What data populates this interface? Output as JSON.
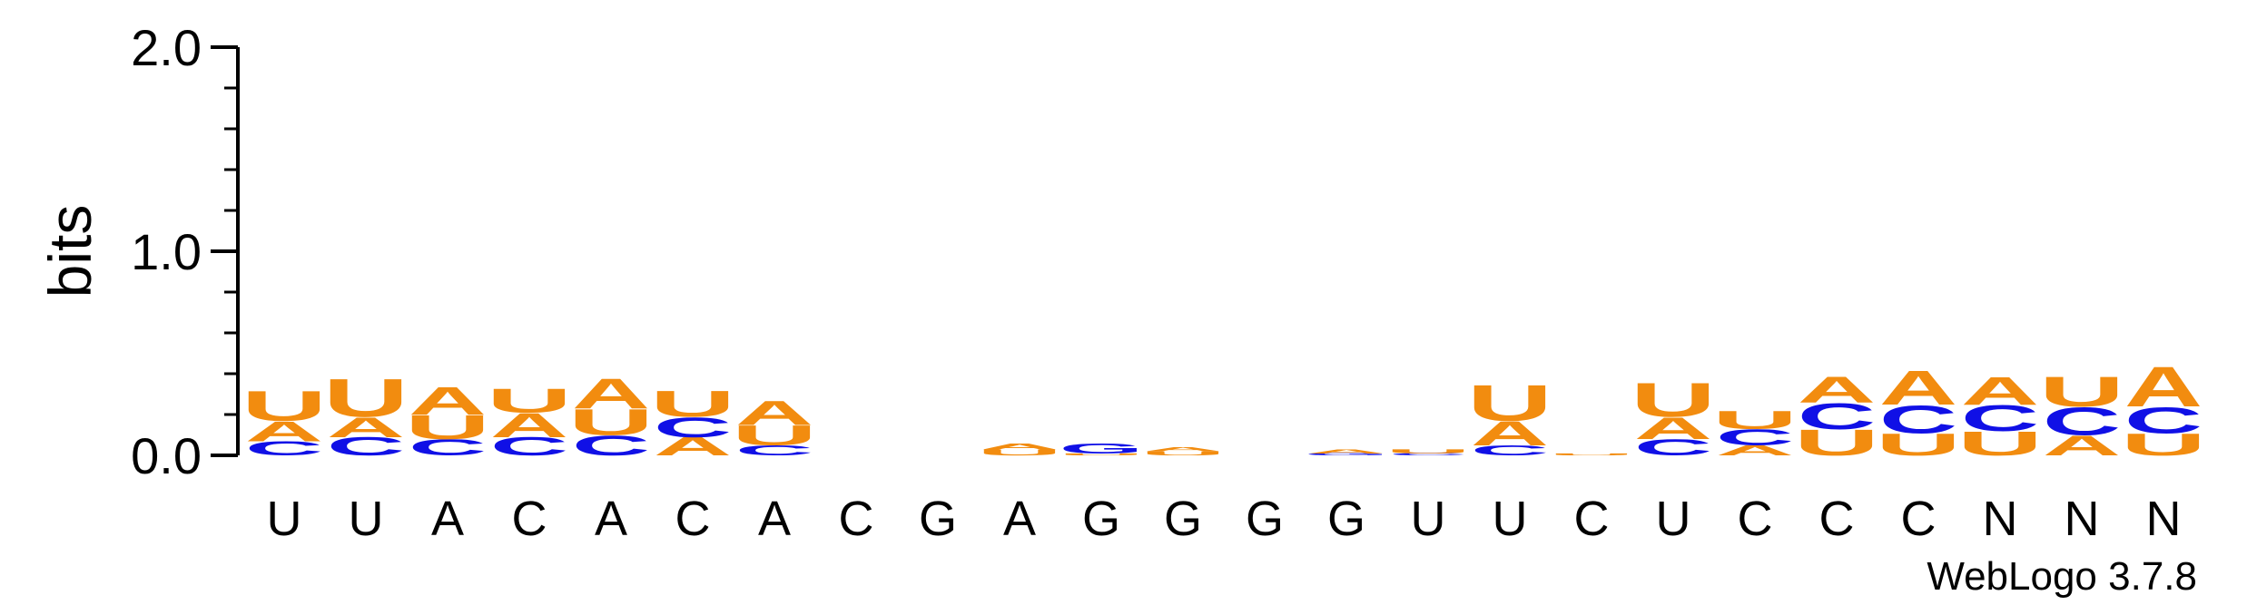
{
  "chart_data": {
    "type": "sequence-logo",
    "ylabel": "bits",
    "ylim": [
      0,
      2.0
    ],
    "yticks": [
      {
        "value": 0.0,
        "label": "0.0"
      },
      {
        "value": 1.0,
        "label": "1.0"
      },
      {
        "value": 2.0,
        "label": "2.0"
      }
    ],
    "credit": "WebLogo 3.7.8",
    "colors": {
      "A": "#f28c0f",
      "U": "#f28c0f",
      "C": "#1010e6",
      "G": "#1010e6",
      "N": "#000000"
    },
    "positions": [
      {
        "label": "U",
        "stack": [
          {
            "letter": "C",
            "height": 0.07
          },
          {
            "letter": "A",
            "height": 0.1
          },
          {
            "letter": "U",
            "height": 0.15
          }
        ]
      },
      {
        "label": "U",
        "stack": [
          {
            "letter": "C",
            "height": 0.09
          },
          {
            "letter": "A",
            "height": 0.1
          },
          {
            "letter": "U",
            "height": 0.19
          }
        ]
      },
      {
        "label": "A",
        "stack": [
          {
            "letter": "C",
            "height": 0.08
          },
          {
            "letter": "U",
            "height": 0.12
          },
          {
            "letter": "A",
            "height": 0.14
          }
        ]
      },
      {
        "label": "C",
        "stack": [
          {
            "letter": "C",
            "height": 0.09
          },
          {
            "letter": "A",
            "height": 0.12
          },
          {
            "letter": "U",
            "height": 0.12
          }
        ]
      },
      {
        "label": "A",
        "stack": [
          {
            "letter": "C",
            "height": 0.1
          },
          {
            "letter": "U",
            "height": 0.13
          },
          {
            "letter": "A",
            "height": 0.15
          }
        ]
      },
      {
        "label": "C",
        "stack": [
          {
            "letter": "A",
            "height": 0.09
          },
          {
            "letter": "C",
            "height": 0.1
          },
          {
            "letter": "U",
            "height": 0.13
          }
        ]
      },
      {
        "label": "A",
        "stack": [
          {
            "letter": "C",
            "height": 0.05
          },
          {
            "letter": "U",
            "height": 0.1
          },
          {
            "letter": "A",
            "height": 0.12
          }
        ]
      },
      {
        "label": "C",
        "stack": []
      },
      {
        "label": "G",
        "stack": []
      },
      {
        "label": "A",
        "stack": [
          {
            "letter": "U",
            "height": 0.03
          },
          {
            "letter": "A",
            "height": 0.03
          }
        ]
      },
      {
        "label": "G",
        "stack": [
          {
            "letter": "U",
            "height": 0.01
          },
          {
            "letter": "G",
            "height": 0.05
          }
        ]
      },
      {
        "label": "G",
        "stack": [
          {
            "letter": "U",
            "height": 0.02
          },
          {
            "letter": "A",
            "height": 0.02
          }
        ]
      },
      {
        "label": "G",
        "stack": []
      },
      {
        "label": "G",
        "stack": [
          {
            "letter": "G",
            "height": 0.01
          },
          {
            "letter": "A",
            "height": 0.02
          }
        ]
      },
      {
        "label": "U",
        "stack": [
          {
            "letter": "C",
            "height": 0.01
          },
          {
            "letter": "U",
            "height": 0.02
          }
        ]
      },
      {
        "label": "U",
        "stack": [
          {
            "letter": "C",
            "height": 0.05
          },
          {
            "letter": "A",
            "height": 0.12
          },
          {
            "letter": "U",
            "height": 0.18
          }
        ]
      },
      {
        "label": "C",
        "stack": [
          {
            "letter": "U",
            "height": 0.01
          }
        ]
      },
      {
        "label": "U",
        "stack": [
          {
            "letter": "C",
            "height": 0.08
          },
          {
            "letter": "A",
            "height": 0.11
          },
          {
            "letter": "U",
            "height": 0.17
          }
        ]
      },
      {
        "label": "C",
        "stack": [
          {
            "letter": "A",
            "height": 0.05
          },
          {
            "letter": "C",
            "height": 0.08
          },
          {
            "letter": "U",
            "height": 0.09
          }
        ]
      },
      {
        "label": "C",
        "stack": [
          {
            "letter": "U",
            "height": 0.13
          },
          {
            "letter": "C",
            "height": 0.13
          },
          {
            "letter": "A",
            "height": 0.13
          }
        ]
      },
      {
        "label": "C",
        "stack": [
          {
            "letter": "U",
            "height": 0.11
          },
          {
            "letter": "C",
            "height": 0.14
          },
          {
            "letter": "A",
            "height": 0.17
          }
        ]
      },
      {
        "label": "N",
        "stack": [
          {
            "letter": "U",
            "height": 0.12
          },
          {
            "letter": "C",
            "height": 0.13
          },
          {
            "letter": "A",
            "height": 0.14
          }
        ]
      },
      {
        "label": "N",
        "stack": [
          {
            "letter": "A",
            "height": 0.1
          },
          {
            "letter": "C",
            "height": 0.14
          },
          {
            "letter": "U",
            "height": 0.15
          }
        ]
      },
      {
        "label": "N",
        "stack": [
          {
            "letter": "U",
            "height": 0.11
          },
          {
            "letter": "C",
            "height": 0.13
          },
          {
            "letter": "A",
            "height": 0.2
          }
        ]
      }
    ]
  }
}
